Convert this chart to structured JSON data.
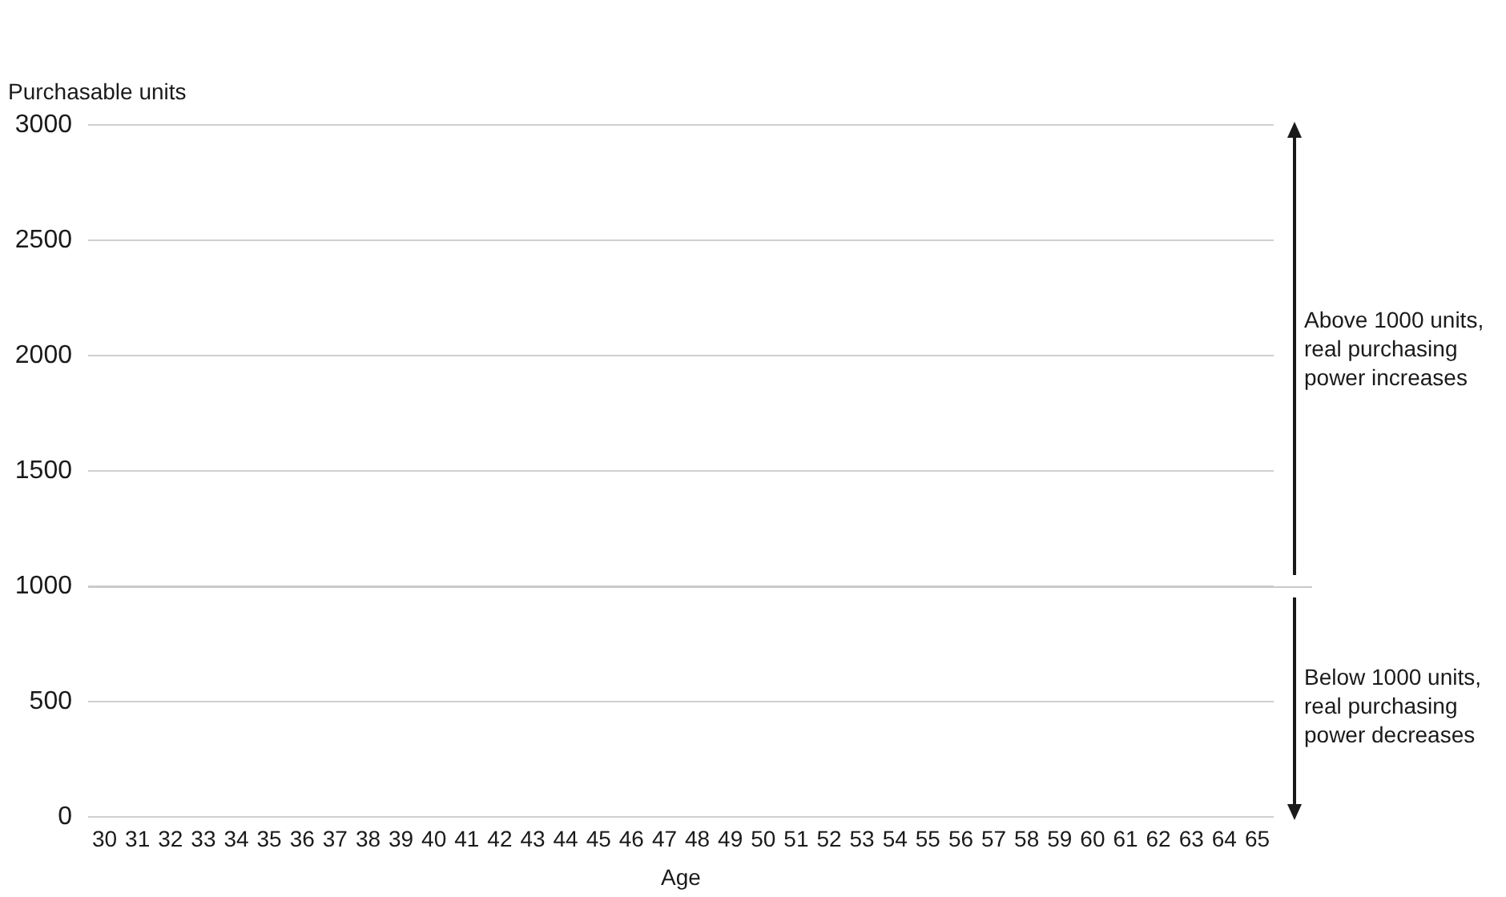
{
  "chart_data": {
    "type": "line",
    "ylabel": "Purchasable units",
    "xlabel": "Age",
    "categories": [
      "30",
      "31",
      "32",
      "33",
      "34",
      "35",
      "36",
      "37",
      "38",
      "39",
      "40",
      "41",
      "42",
      "43",
      "44",
      "45",
      "46",
      "47",
      "48",
      "49",
      "50",
      "51",
      "52",
      "53",
      "54",
      "55",
      "56",
      "57",
      "58",
      "59",
      "60",
      "61",
      "62",
      "63",
      "64",
      "65"
    ],
    "ylim": [
      0,
      3000
    ],
    "yticks": [
      0,
      500,
      1000,
      1500,
      2000,
      2500,
      3000
    ],
    "grid": "y",
    "ref_lines": [
      {
        "axis": "y",
        "value": 1000,
        "color": "#c8c8c8"
      }
    ],
    "annotations": [
      "Above 1000 units, real purchasing power increases",
      "Below 1000 units, real purchasing power decreases"
    ]
  }
}
